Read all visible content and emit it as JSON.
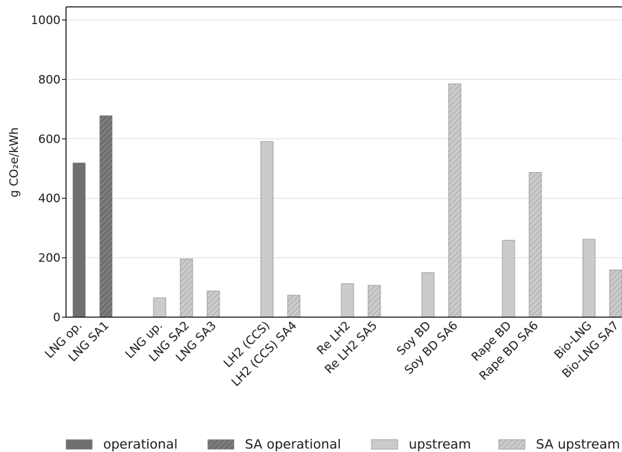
{
  "chart_data": {
    "type": "bar",
    "title": "",
    "xlabel": "",
    "ylabel": "g CO₂e/kWh",
    "ylim": [
      0,
      1050
    ],
    "yticks": [
      0,
      200,
      400,
      600,
      800,
      1000
    ],
    "grid": true,
    "legend_position": "bottom",
    "bars": [
      {
        "label": "LNG op.",
        "value": 519,
        "series": "operational"
      },
      {
        "label": "LNG SA1",
        "value": 678,
        "series": "SA operational"
      },
      {
        "label": "LNG up.",
        "value": 65,
        "series": "upstream"
      },
      {
        "label": "LNG SA2",
        "value": 196,
        "series": "SA upstream"
      },
      {
        "label": "LNG SA3",
        "value": 88,
        "series": "SA upstream"
      },
      {
        "label": "LH2 (CCS)",
        "value": 591,
        "series": "upstream"
      },
      {
        "label": "LH2 (CCS) SA4",
        "value": 74,
        "series": "SA upstream"
      },
      {
        "label": "Re LH2",
        "value": 113,
        "series": "upstream"
      },
      {
        "label": "Re LH2 SA5",
        "value": 107,
        "series": "SA upstream"
      },
      {
        "label": "Soy BD",
        "value": 150,
        "series": "upstream"
      },
      {
        "label": "Soy BD SA6",
        "value": 785,
        "series": "SA upstream"
      },
      {
        "label": "Rape BD",
        "value": 259,
        "series": "upstream"
      },
      {
        "label": "Rape BD SA6",
        "value": 487,
        "series": "SA upstream"
      },
      {
        "label": "Bio-LNG",
        "value": 262,
        "series": "upstream"
      },
      {
        "label": "Bio-LNG SA7",
        "value": 159,
        "series": "SA upstream"
      }
    ],
    "legend": [
      {
        "name": "operational",
        "color": "#6f6f6f",
        "hatched": false
      },
      {
        "name": "SA operational",
        "color": "#6f6f6f",
        "hatched": true
      },
      {
        "name": "upstream",
        "color": "#cbcbcb",
        "hatched": false
      },
      {
        "name": "SA upstream",
        "color": "#cbcbcb",
        "hatched": true
      }
    ]
  }
}
